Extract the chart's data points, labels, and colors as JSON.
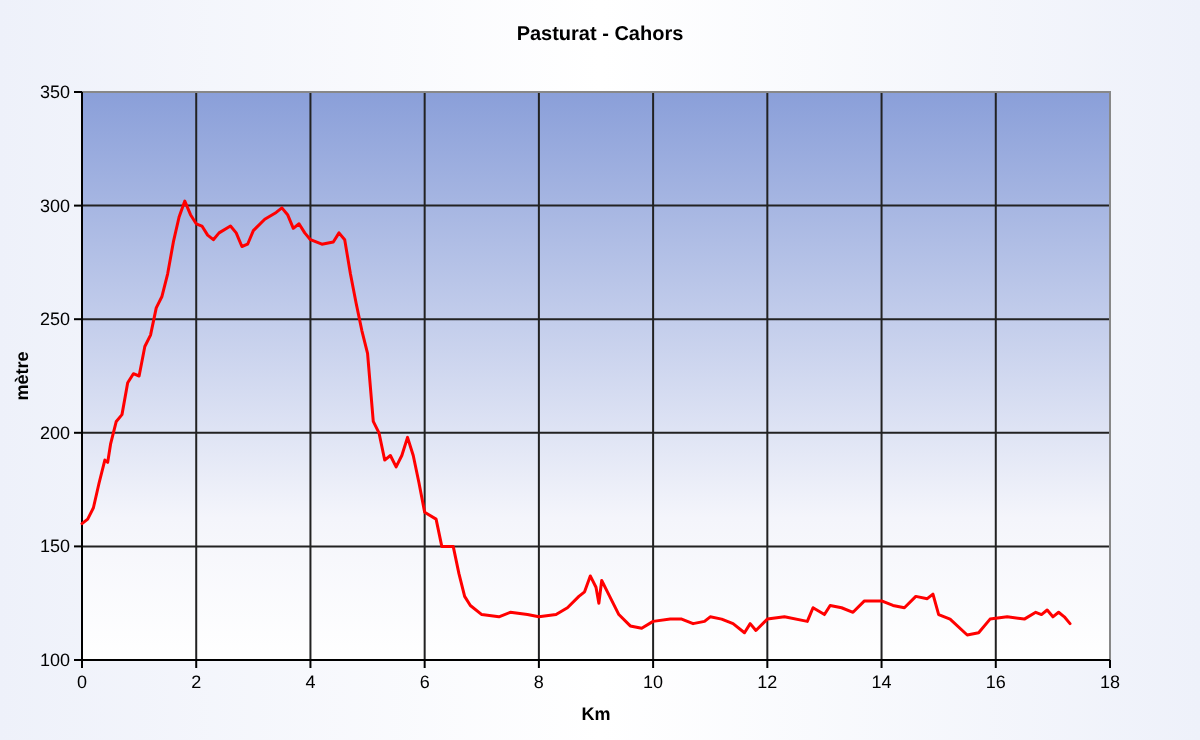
{
  "chart_data": {
    "type": "line",
    "title": "Pasturat - Cahors",
    "xlabel": "Km",
    "ylabel": "mètre",
    "xlim": [
      0,
      18
    ],
    "ylim": [
      100,
      350
    ],
    "xticks": [
      0,
      2,
      4,
      6,
      8,
      10,
      12,
      14,
      16,
      18
    ],
    "yticks": [
      100,
      150,
      200,
      250,
      300,
      350
    ],
    "grid": true,
    "marker": "none",
    "line_style": "solid",
    "series": [
      {
        "color": "#ff0000",
        "x": [
          0,
          0.1,
          0.2,
          0.3,
          0.4,
          0.45,
          0.5,
          0.6,
          0.7,
          0.8,
          0.9,
          1.0,
          1.1,
          1.2,
          1.3,
          1.4,
          1.5,
          1.6,
          1.7,
          1.8,
          1.9,
          2.0,
          2.1,
          2.2,
          2.3,
          2.4,
          2.6,
          2.7,
          2.8,
          2.9,
          3.0,
          3.2,
          3.4,
          3.5,
          3.6,
          3.7,
          3.8,
          3.9,
          4.0,
          4.2,
          4.4,
          4.5,
          4.6,
          4.7,
          4.8,
          4.9,
          5.0,
          5.05,
          5.1,
          5.2,
          5.3,
          5.4,
          5.5,
          5.6,
          5.7,
          5.8,
          5.9,
          6.0,
          6.2,
          6.3,
          6.5,
          6.6,
          6.7,
          6.8,
          7.0,
          7.3,
          7.5,
          7.8,
          8.0,
          8.3,
          8.5,
          8.7,
          8.8,
          8.9,
          9.0,
          9.05,
          9.1,
          9.2,
          9.4,
          9.6,
          9.8,
          10.0,
          10.3,
          10.5,
          10.7,
          10.9,
          11.0,
          11.2,
          11.4,
          11.6,
          11.7,
          11.8,
          12.0,
          12.3,
          12.7,
          12.8,
          13.0,
          13.1,
          13.3,
          13.5,
          13.7,
          14.0,
          14.2,
          14.4,
          14.6,
          14.8,
          14.9,
          15.0,
          15.2,
          15.5,
          15.7,
          15.9,
          16.2,
          16.5,
          16.7,
          16.8,
          16.9,
          17.0,
          17.1,
          17.2,
          17.3
        ],
        "values": [
          160,
          162,
          167,
          178,
          188,
          187,
          195,
          205,
          208,
          222,
          226,
          225,
          238,
          243,
          255,
          260,
          270,
          284,
          295,
          302,
          296,
          292,
          291,
          287,
          285,
          288,
          291,
          288,
          282,
          283,
          289,
          294,
          297,
          299,
          296,
          290,
          292,
          288,
          285,
          283,
          284,
          288,
          285,
          270,
          257,
          245,
          235,
          220,
          205,
          200,
          188,
          190,
          185,
          190,
          198,
          190,
          178,
          165,
          162,
          150,
          150,
          138,
          128,
          124,
          120,
          119,
          121,
          120,
          119,
          120,
          123,
          128,
          130,
          137,
          132,
          125,
          135,
          130,
          120,
          115,
          114,
          117,
          118,
          118,
          116,
          117,
          119,
          118,
          116,
          112,
          116,
          113,
          118,
          119,
          117,
          123,
          120,
          124,
          123,
          121,
          126,
          126,
          124,
          123,
          128,
          127,
          129,
          120,
          118,
          111,
          112,
          118,
          119,
          118,
          121,
          120,
          122,
          119,
          121,
          119,
          116
        ]
      }
    ]
  }
}
